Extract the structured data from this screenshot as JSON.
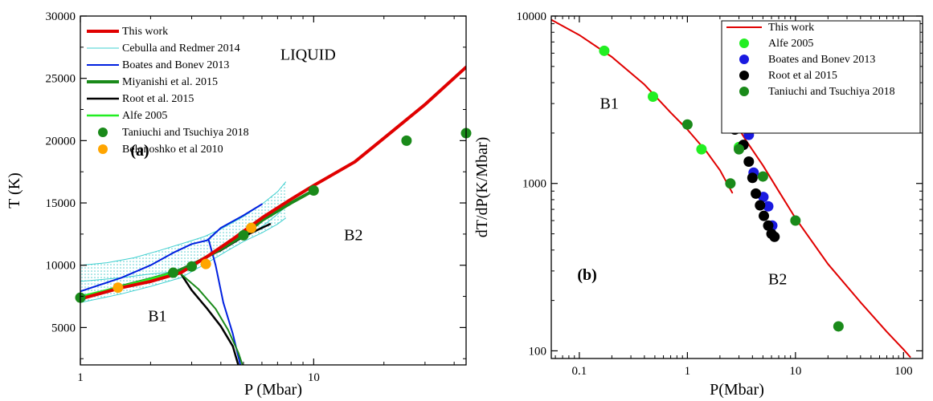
{
  "chart_data": [
    {
      "type": "line",
      "panel_label": "(a)",
      "xlabel": "P (Mbar)",
      "ylabel": "T (K)",
      "xscale": "log",
      "xlim": [
        1,
        45
      ],
      "ylim": [
        2000,
        30000
      ],
      "x_ticks": [
        {
          "v": 1,
          "label": "1"
        },
        {
          "v": 10,
          "label": "10"
        }
      ],
      "y_ticks": [
        {
          "v": 5000,
          "label": "5000"
        },
        {
          "v": 10000,
          "label": "10000"
        },
        {
          "v": 15000,
          "label": "15000"
        },
        {
          "v": 20000,
          "label": "20000"
        },
        {
          "v": 25000,
          "label": "25000"
        },
        {
          "v": 30000,
          "label": "30000"
        }
      ],
      "region_labels": [
        {
          "text": "LIQUID",
          "x": 7.2,
          "y": 26500
        },
        {
          "text": "B2",
          "x": 13.5,
          "y": 12000
        },
        {
          "text": "B1",
          "x": 1.95,
          "y": 5500
        }
      ],
      "legend": [
        {
          "label": "This work",
          "kind": "line",
          "color": "#e00000",
          "width": 4
        },
        {
          "label": "Cebulla and Redmer 2014",
          "kind": "line",
          "color": "#40d0d0",
          "width": 1
        },
        {
          "label": "Boates and Bonev 2013",
          "kind": "line",
          "color": "#0020e0",
          "width": 2
        },
        {
          "label": "Miyanishi et al. 2015",
          "kind": "line",
          "color": "#1a8a1a",
          "width": 4
        },
        {
          "label": "Root et al. 2015",
          "kind": "line",
          "color": "#000000",
          "width": 2.5
        },
        {
          "label": "Alfe 2005",
          "kind": "line",
          "color": "#22ee22",
          "width": 2.5
        },
        {
          "label": "Taniuchi and Tsuchiya 2018",
          "kind": "marker",
          "color": "#1a8a1a"
        },
        {
          "label": "Belonoshko et al 2010",
          "kind": "marker",
          "color": "#ffa500"
        }
      ],
      "band": {
        "upper": [
          [
            1,
            10000
          ],
          [
            1.3,
            10200
          ],
          [
            1.7,
            10600
          ],
          [
            2.2,
            11200
          ],
          [
            2.8,
            11800
          ],
          [
            3.4,
            12300
          ],
          [
            4,
            12900
          ],
          [
            5,
            13900
          ],
          [
            6,
            14900
          ],
          [
            7,
            15900
          ],
          [
            7.6,
            16700
          ]
        ],
        "lower": [
          [
            1,
            7000
          ],
          [
            1.5,
            7700
          ],
          [
            2,
            8300
          ],
          [
            2.7,
            9000
          ],
          [
            3.5,
            10200
          ],
          [
            4.3,
            11200
          ],
          [
            5,
            11900
          ],
          [
            6,
            12600
          ],
          [
            7,
            13300
          ],
          [
            7.6,
            13800
          ]
        ]
      },
      "series": [
        {
          "name": "Cebulla and Redmer 2014",
          "color": "#40d0d0",
          "width": 1,
          "values": [
            [
              1,
              8700
            ],
            [
              1.5,
              9000
            ],
            [
              2,
              9300
            ],
            [
              2.6,
              9500
            ],
            [
              3.2,
              10200
            ],
            [
              4,
              11300
            ],
            [
              5,
              12200
            ],
            [
              6,
              13100
            ],
            [
              7,
              14100
            ],
            [
              7.6,
              14700
            ]
          ]
        },
        {
          "name": "Boates and Bonev 2013",
          "color": "#0020e0",
          "width": 2,
          "values": [
            [
              1,
              7900
            ],
            [
              1.5,
              9000
            ],
            [
              2,
              10000
            ],
            [
              2.5,
              11000
            ],
            [
              3,
              11700
            ],
            [
              3.5,
              12000
            ],
            [
              4,
              13000
            ],
            [
              5,
              14000
            ],
            [
              6,
              14900
            ]
          ]
        },
        {
          "name": "Boates and Bonev 2013 B1-B2",
          "color": "#0020e0",
          "width": 2,
          "values": [
            [
              3.55,
              12000
            ],
            [
              3.8,
              10000
            ],
            [
              4.1,
              7000
            ],
            [
              4.5,
              4500
            ],
            [
              4.85,
              2000
            ]
          ]
        },
        {
          "name": "Root et al. 2015",
          "color": "#000000",
          "width": 2.5,
          "values": [
            [
              1.6,
              8300
            ],
            [
              2,
              8900
            ],
            [
              2.5,
              9400
            ],
            [
              3,
              10100
            ],
            [
              4,
              11200
            ],
            [
              5,
              12300
            ],
            [
              6.5,
              13300
            ]
          ]
        },
        {
          "name": "Root et al. 2015 B1-B2",
          "color": "#000000",
          "width": 2.5,
          "values": [
            [
              2.7,
              9300
            ],
            [
              3,
              8000
            ],
            [
              3.5,
              6500
            ],
            [
              4,
              5100
            ],
            [
              4.5,
              3500
            ],
            [
              4.75,
              2000
            ]
          ]
        },
        {
          "name": "Miyanishi et al. 2015",
          "color": "#1a8a1a",
          "width": 4,
          "values": [
            [
              1,
              7300
            ],
            [
              1.5,
              8300
            ],
            [
              2,
              8900
            ],
            [
              2.5,
              9400
            ],
            [
              3,
              10000
            ],
            [
              4,
              11300
            ],
            [
              5,
              12400
            ],
            [
              6,
              13600
            ],
            [
              8,
              15000
            ],
            [
              10,
              16000
            ]
          ]
        },
        {
          "name": "Miyanishi et al. 2015 B1-B2",
          "color": "#1a8a1a",
          "width": 2,
          "values": [
            [
              2.7,
              9300
            ],
            [
              3.2,
              8100
            ],
            [
              3.8,
              6500
            ],
            [
              4.3,
              4800
            ],
            [
              4.75,
              3000
            ],
            [
              4.95,
              2000
            ]
          ]
        },
        {
          "name": "Alfe 2005",
          "color": "#22ee22",
          "width": 2.5,
          "values": [
            [
              1,
              7500
            ],
            [
              1.5,
              8300
            ],
            [
              2,
              8900
            ],
            [
              2.5,
              9400
            ]
          ]
        },
        {
          "name": "This work",
          "color": "#e00000",
          "width": 4,
          "values": [
            [
              1,
              7300
            ],
            [
              1.5,
              8200
            ],
            [
              2,
              8700
            ],
            [
              2.7,
              9400
            ],
            [
              3.5,
              10700
            ],
            [
              4.5,
              12100
            ],
            [
              6,
              13800
            ],
            [
              8,
              15300
            ],
            [
              10,
              16400
            ],
            [
              15,
              18300
            ],
            [
              20,
              20200
            ],
            [
              30,
              22900
            ],
            [
              45,
              25900
            ]
          ]
        }
      ],
      "markers": [
        {
          "name": "Taniuchi and Tsuchiya 2018",
          "color": "#1a8a1a",
          "points": [
            [
              1,
              7400
            ],
            [
              2.5,
              9400
            ],
            [
              3,
              9900
            ],
            [
              5,
              12400
            ],
            [
              10,
              16000
            ],
            [
              25,
              20000
            ],
            [
              45,
              20600
            ]
          ]
        },
        {
          "name": "Belonoshko et al 2010",
          "color": "#ffa500",
          "points": [
            [
              1.45,
              8200
            ],
            [
              3.45,
              10100
            ],
            [
              5.4,
              13000
            ]
          ]
        }
      ]
    },
    {
      "type": "line",
      "panel_label": "(b)",
      "xlabel": "P(Mbar)",
      "ylabel": "dT/dP(K/Mbar)",
      "xscale": "log",
      "yscale": "log",
      "xlim": [
        0.055,
        150
      ],
      "ylim": [
        90,
        10000
      ],
      "x_ticks": [
        {
          "v": 0.1,
          "label": "0.1"
        },
        {
          "v": 1,
          "label": "1"
        },
        {
          "v": 10,
          "label": "10"
        },
        {
          "v": 100,
          "label": "100"
        }
      ],
      "y_ticks": [
        {
          "v": 100,
          "label": "100"
        },
        {
          "v": 1000,
          "label": "1000"
        },
        {
          "v": 10000,
          "label": "10000"
        }
      ],
      "region_labels": [
        {
          "text": "B1",
          "x": 0.155,
          "y": 2800
        },
        {
          "text": "B2",
          "x": 5.6,
          "y": 250
        }
      ],
      "legend": [
        {
          "label": "This work",
          "kind": "line",
          "color": "#e00000",
          "width": 2
        },
        {
          "label": "Alfe 2005",
          "kind": "marker",
          "color": "#22ee22"
        },
        {
          "label": "Boates and Bonev 2013",
          "kind": "marker",
          "color": "#1a1ae0"
        },
        {
          "label": "Root et al 2015",
          "kind": "marker",
          "color": "#000000"
        },
        {
          "label": "Taniuchi and Tsuchiya 2018",
          "kind": "marker",
          "color": "#1a8a1a"
        }
      ],
      "series": [
        {
          "name": "This work B1",
          "color": "#e00000",
          "width": 2,
          "values": [
            [
              0.055,
              9500
            ],
            [
              0.1,
              7700
            ],
            [
              0.2,
              5700
            ],
            [
              0.4,
              3900
            ],
            [
              0.7,
              2650
            ],
            [
              1,
              2100
            ],
            [
              1.5,
              1550
            ],
            [
              2,
              1200
            ],
            [
              2.6,
              880
            ]
          ]
        },
        {
          "name": "This work B2",
          "color": "#e00000",
          "width": 2,
          "values": [
            [
              2.7,
              2350
            ],
            [
              3.5,
              1800
            ],
            [
              5,
              1280
            ],
            [
              7,
              900
            ],
            [
              10,
              620
            ],
            [
              20,
              330
            ],
            [
              40,
              195
            ],
            [
              70,
              130
            ],
            [
              100,
              102
            ],
            [
              115,
              92
            ]
          ]
        }
      ],
      "markers": [
        {
          "name": "Alfe 2005",
          "color": "#22ee22",
          "points": [
            [
              0.17,
              6200
            ],
            [
              0.48,
              3300
            ],
            [
              1.35,
              1600
            ],
            [
              3,
              1650
            ]
          ]
        },
        {
          "name": "Boates and Bonev 2013",
          "color": "#1a1ae0",
          "points": [
            [
              3.7,
              1950
            ],
            [
              4.1,
              1160
            ],
            [
              5.05,
              830
            ],
            [
              5.6,
              730
            ],
            [
              6.1,
              560
            ]
          ]
        },
        {
          "name": "Root et al 2015",
          "color": "#000000",
          "points": [
            [
              2.75,
              2100
            ],
            [
              3.3,
              1700
            ],
            [
              3.7,
              1350
            ],
            [
              4,
              1080
            ],
            [
              4.3,
              870
            ],
            [
              4.7,
              740
            ],
            [
              5.1,
              640
            ],
            [
              5.6,
              560
            ],
            [
              6,
              500
            ],
            [
              6.4,
              480
            ]
          ]
        },
        {
          "name": "Taniuchi and Tsuchiya 2018",
          "color": "#1a8a1a",
          "points": [
            [
              1,
              2250
            ],
            [
              2.5,
              1000
            ],
            [
              3,
              1600
            ],
            [
              5,
              1100
            ],
            [
              10,
              600
            ],
            [
              25,
              140
            ]
          ]
        }
      ]
    }
  ]
}
